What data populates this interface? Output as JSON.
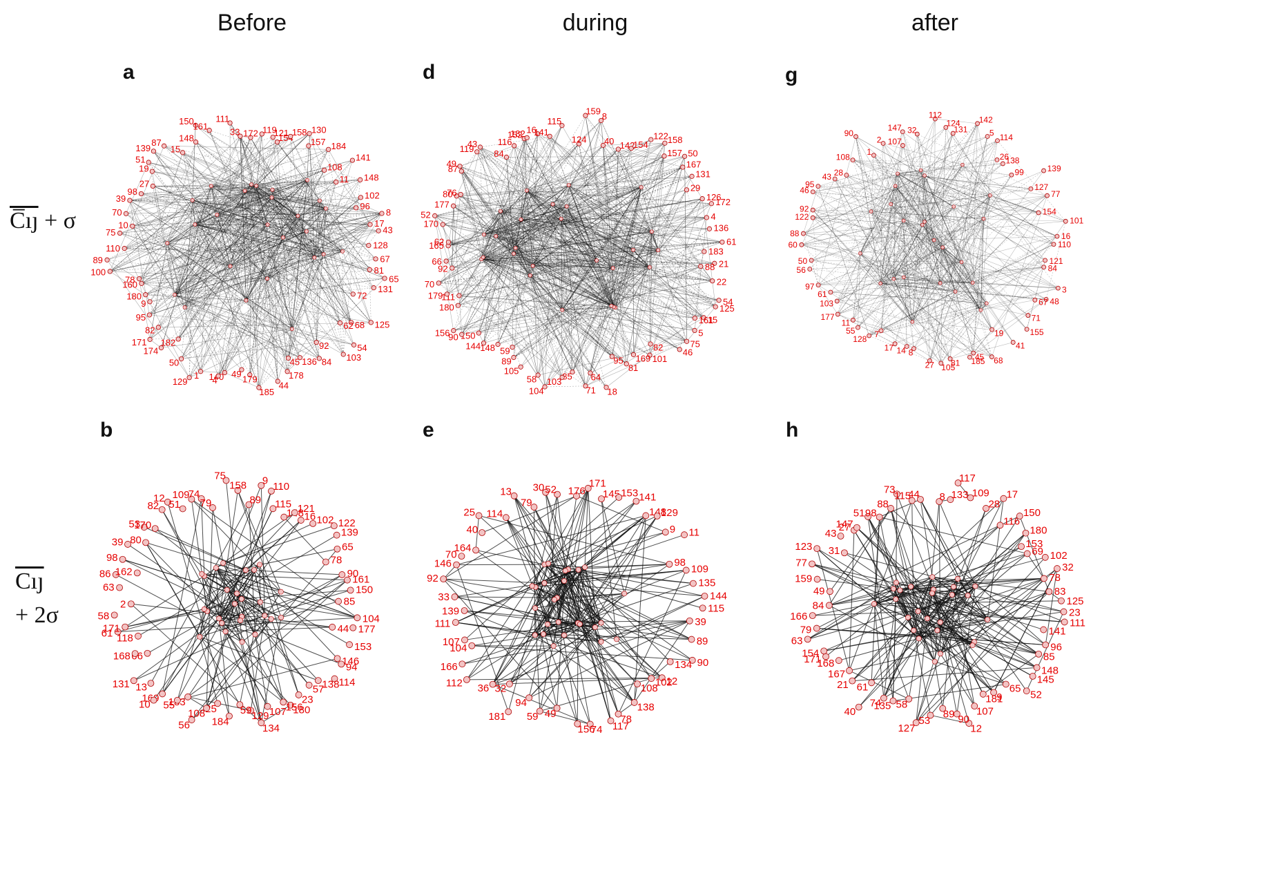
{
  "columns": [
    "Before",
    "during",
    "after"
  ],
  "row_labels": {
    "row1_over": "C̅ıȷ",
    "row1_rest": " + σ",
    "row2_over": "Cıȷ",
    "row2_rest": "+ 2σ"
  },
  "colors": {
    "node_fill": "#f3c4c4",
    "node_stroke": "#b00000",
    "label": "#e60000",
    "edge": "#111111"
  },
  "panels": [
    {
      "letter": "a",
      "nodes": [
        "172",
        "119",
        "121",
        "154",
        "158",
        "130",
        "157",
        "184",
        "108",
        "141",
        "11",
        "148",
        "102",
        "96",
        "8",
        "17",
        "43",
        "128",
        "67",
        "81",
        "65",
        "131",
        "72",
        "125",
        "68",
        "62",
        "54",
        "103",
        "92",
        "84",
        "136",
        "45",
        "178",
        "44",
        "185",
        "179",
        "49",
        "140",
        "4",
        "1",
        "129",
        "50",
        "182",
        "174",
        "171",
        "82",
        "95",
        "9",
        "180",
        "160",
        "78",
        "100",
        "89",
        "110",
        "75",
        "10",
        "70",
        "39",
        "98",
        "27",
        "19",
        "51",
        "139",
        "87",
        "15",
        "148",
        "150",
        "161",
        "111",
        "33"
      ]
    },
    {
      "letter": "d",
      "nodes": [
        "124",
        "159",
        "8",
        "40",
        "142",
        "154",
        "122",
        "158",
        "157",
        "50",
        "167",
        "131",
        "29",
        "126",
        "172",
        "4",
        "136",
        "61",
        "183",
        "21",
        "88",
        "22",
        "54",
        "125",
        "15",
        "161",
        "5",
        "75",
        "46",
        "82",
        "101",
        "169",
        "81",
        "95",
        "18",
        "64",
        "71",
        "85",
        "103",
        "104",
        "58",
        "105",
        "89",
        "59",
        "148",
        "144",
        "150",
        "90",
        "156",
        "180",
        "111",
        "179",
        "70",
        "92",
        "66",
        "165",
        "62",
        "170",
        "52",
        "177",
        "80",
        "76",
        "87",
        "49",
        "119",
        "43",
        "84",
        "116",
        "152",
        "182",
        "16",
        "141",
        "115"
      ]
    },
    {
      "letter": "g",
      "nodes": [
        "112",
        "124",
        "131",
        "142",
        "5",
        "114",
        "26",
        "138",
        "99",
        "139",
        "127",
        "77",
        "154",
        "101",
        "16",
        "110",
        "121",
        "84",
        "3",
        "48",
        "67",
        "71",
        "155",
        "41",
        "19",
        "68",
        "45",
        "185",
        "81",
        "105",
        "27",
        "8",
        "14",
        "17",
        "7",
        "128",
        "55",
        "11",
        "177",
        "103",
        "61",
        "97",
        "56",
        "50",
        "60",
        "88",
        "122",
        "92",
        "46",
        "95",
        "43",
        "28",
        "108",
        "90",
        "1",
        "2",
        "107",
        "147",
        "32"
      ]
    },
    {
      "letter": "b",
      "nodes": [
        "158",
        "89",
        "9",
        "110",
        "115",
        "148",
        "121",
        "16",
        "102",
        "122",
        "139",
        "65",
        "78",
        "90",
        "161",
        "150",
        "85",
        "104",
        "177",
        "44",
        "153",
        "146",
        "94",
        "114",
        "138",
        "57",
        "23",
        "180",
        "156",
        "107",
        "134",
        "129",
        "59",
        "184",
        "25",
        "108",
        "56",
        "183",
        "55",
        "169",
        "10",
        "13",
        "131",
        "66",
        "168",
        "118",
        "61",
        "171",
        "58",
        "2",
        "63",
        "86",
        "162",
        "98",
        "39",
        "80",
        "53",
        "170",
        "82",
        "12",
        "51",
        "109",
        "74",
        "79",
        "75"
      ]
    },
    {
      "letter": "e",
      "nodes": [
        "176",
        "171",
        "145",
        "153",
        "141",
        "148",
        "129",
        "9",
        "11",
        "98",
        "109",
        "135",
        "144",
        "115",
        "39",
        "89",
        "90",
        "134",
        "12",
        "102",
        "108",
        "138",
        "78",
        "117",
        "74",
        "156",
        "49",
        "59",
        "94",
        "181",
        "32",
        "36",
        "112",
        "166",
        "104",
        "107",
        "111",
        "139",
        "33",
        "92",
        "146",
        "70",
        "164",
        "40",
        "25",
        "114",
        "13",
        "79",
        "30",
        "52"
      ]
    },
    {
      "letter": "h",
      "nodes": [
        "8",
        "133",
        "117",
        "109",
        "28",
        "17",
        "116",
        "150",
        "180",
        "153",
        "69",
        "102",
        "32",
        "78",
        "83",
        "125",
        "23",
        "111",
        "141",
        "96",
        "85",
        "148",
        "145",
        "52",
        "65",
        "9",
        "181",
        "107",
        "12",
        "90",
        "89",
        "53",
        "127",
        "58",
        "135",
        "74",
        "40",
        "61",
        "21",
        "167",
        "168",
        "171",
        "154",
        "63",
        "79",
        "166",
        "84",
        "49",
        "159",
        "77",
        "123",
        "31",
        "43",
        "27",
        "147",
        "51",
        "98",
        "88",
        "73",
        "115",
        "44"
      ]
    }
  ]
}
